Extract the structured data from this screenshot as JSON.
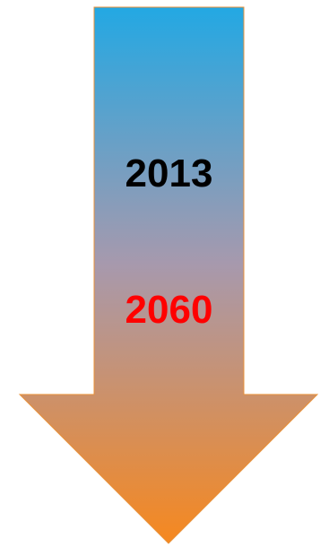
{
  "diagram": {
    "years": [
      {
        "label": "2013",
        "color": "#000000"
      },
      {
        "label": "2060",
        "color": "#ff0000"
      }
    ],
    "arrow": {
      "direction": "down",
      "gradient_top": "#23a8e3",
      "gradient_mid": "#a799ad",
      "gradient_bottom": "#f6881f",
      "outline": "#e8913a"
    }
  }
}
